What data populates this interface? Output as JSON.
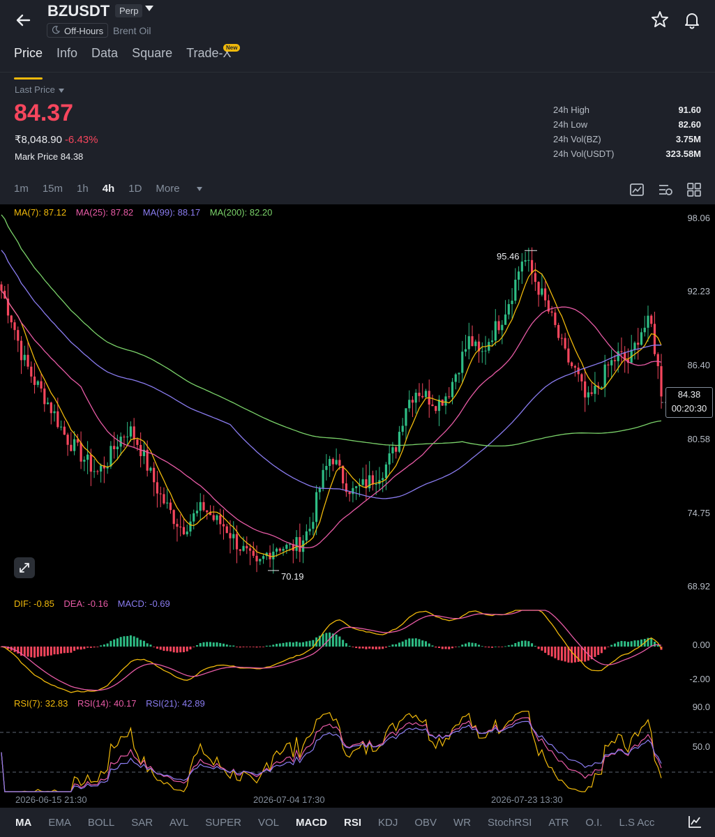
{
  "header": {
    "symbol": "BZUSDT",
    "perp_badge": "Perp",
    "off_hours": "Off-Hours",
    "subtitle": "Brent Oil"
  },
  "tabs": [
    {
      "label": "Price",
      "active": true
    },
    {
      "label": "Info"
    },
    {
      "label": "Data"
    },
    {
      "label": "Square"
    },
    {
      "label": "Trade-X",
      "badge": "New"
    }
  ],
  "price": {
    "label": "Last Price",
    "last": "84.37",
    "inr": "₹8,048.90",
    "change": "-6.43%",
    "mark_label": "Mark Price",
    "mark": "84.38"
  },
  "stats": [
    {
      "label": "24h High",
      "value": "91.60"
    },
    {
      "label": "24h Low",
      "value": "82.60"
    },
    {
      "label": "24h Vol(BZ)",
      "value": "3.75M"
    },
    {
      "label": "24h Vol(USDT)",
      "value": "323.58M"
    }
  ],
  "timeframes": [
    "1m",
    "15m",
    "1h",
    "4h",
    "1D",
    "More"
  ],
  "active_timeframe": "4h",
  "chart": {
    "ma_legend": [
      {
        "label": "MA(7): 87.12",
        "color": "#f0b90b"
      },
      {
        "label": "MA(25): 87.82",
        "color": "#e85ba6"
      },
      {
        "label": "MA(99): 88.17",
        "color": "#8a7cf0"
      },
      {
        "label": "MA(200): 82.20",
        "color": "#7bd36a"
      }
    ],
    "price_axis": [
      "98.06",
      "92.23",
      "86.40",
      "80.58",
      "74.75",
      "68.92"
    ],
    "current_price": "84.38",
    "countdown": "00:20:30",
    "high_annotation": "95.46",
    "low_annotation": "70.19",
    "macd_legend": [
      {
        "label": "DIF: -0.85",
        "color": "#f0b90b"
      },
      {
        "label": "DEA: -0.16",
        "color": "#e85ba6"
      },
      {
        "label": "MACD: -0.69",
        "color": "#8a7cf0"
      }
    ],
    "macd_axis": [
      "0.00",
      "-2.00"
    ],
    "rsi_legend": [
      {
        "label": "RSI(7): 32.83",
        "color": "#f0b90b"
      },
      {
        "label": "RSI(14): 40.17",
        "color": "#e85ba6"
      },
      {
        "label": "RSI(21): 42.89",
        "color": "#8a7cf0"
      }
    ],
    "rsi_axis": [
      "90.0",
      "50.0"
    ],
    "dates": [
      "2026-06-15 21:30",
      "2026-07-04 17:30",
      "2026-07-23 13:30"
    ]
  },
  "chart_data": {
    "type": "candlestick",
    "interval": "4h",
    "ylim": [
      68.92,
      98.06
    ],
    "close_path": [
      92.3,
      90.0,
      87.0,
      85.3,
      84.0,
      82.5,
      80.8,
      79.8,
      78.8,
      77.9,
      78.9,
      80.5,
      81.4,
      80.0,
      77.8,
      76.0,
      74.6,
      73.5,
      74.4,
      75.2,
      74.2,
      73.7,
      72.5,
      71.5,
      70.4,
      71.6,
      72.2,
      71.9,
      72.3,
      73.6,
      77.1,
      79.4,
      77.5,
      76.4,
      76.9,
      77.5,
      78.3,
      79.8,
      83.3,
      84.5,
      83.9,
      83.4,
      84.3,
      86.5,
      88.5,
      87.0,
      88.8,
      90.1,
      92.2,
      95.0,
      93.4,
      91.5,
      89.4,
      87.1,
      85.8,
      83.4,
      84.6,
      86.3,
      87.2,
      86.6,
      89.1,
      89.8,
      84.4
    ],
    "marked_high": 95.46,
    "marked_low": 70.19,
    "indicators": [
      "MA(7)",
      "MA(25)",
      "MA(99)",
      "MA(200)",
      "MACD",
      "RSI"
    ]
  },
  "indicators_bar": [
    {
      "label": "MA",
      "on": true
    },
    {
      "label": "EMA"
    },
    {
      "label": "BOLL"
    },
    {
      "label": "SAR"
    },
    {
      "label": "AVL"
    },
    {
      "label": "SUPER"
    },
    {
      "label": "VOL"
    },
    {
      "label": "MACD",
      "on": true
    },
    {
      "label": "RSI",
      "on": true
    },
    {
      "label": "KDJ"
    },
    {
      "label": "OBV"
    },
    {
      "label": "WR"
    },
    {
      "label": "StochRSI"
    },
    {
      "label": "ATR"
    },
    {
      "label": "O.I."
    },
    {
      "label": "L.S Acc"
    }
  ],
  "colors": {
    "up": "#2ebd85",
    "down": "#f6465d",
    "accent": "#f0b90b"
  }
}
